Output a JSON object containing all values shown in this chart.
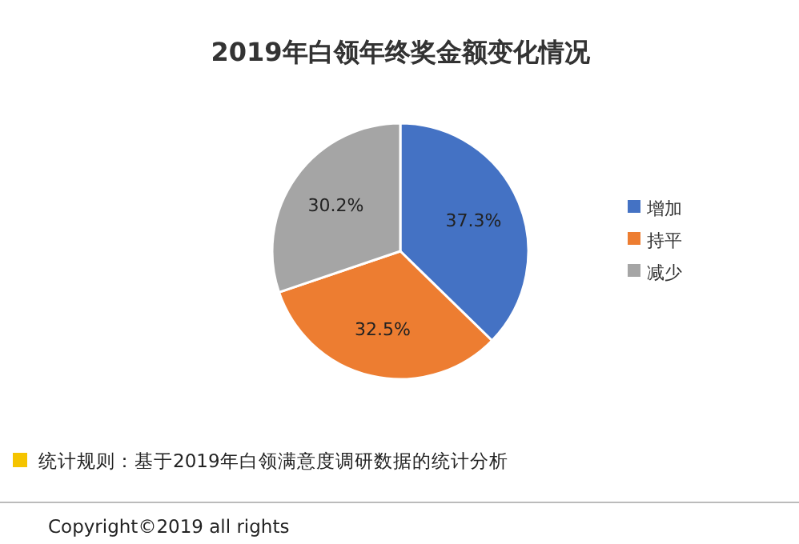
{
  "chart_data": {
    "type": "pie",
    "title": "2019年白领年终奖金额变化情况",
    "categories": [
      "增加",
      "持平",
      "减少"
    ],
    "values": [
      37.3,
      32.5,
      30.2
    ],
    "value_labels": [
      "37.3%",
      "32.5%",
      "30.2%"
    ],
    "colors": [
      "#4472c4",
      "#ed7d31",
      "#a5a5a5"
    ],
    "legend": "right",
    "annotations": [
      "统计规则：基于2019年白领满意度调研数据的统计分析",
      "Copyright©2019 all rights"
    ]
  }
}
